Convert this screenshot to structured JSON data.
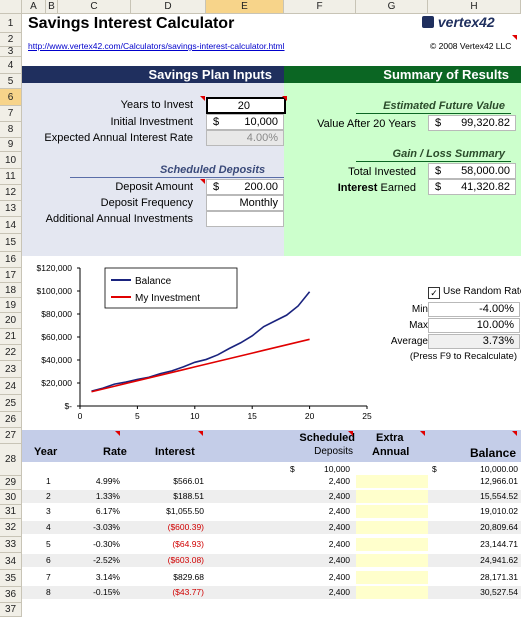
{
  "columns": [
    "A",
    "B",
    "C",
    "D",
    "E",
    "F",
    "G",
    "H"
  ],
  "rows": [
    "1",
    "2",
    "3",
    "4",
    "5",
    "6",
    "7",
    "8",
    "9",
    "10",
    "11",
    "12",
    "13",
    "14",
    "15",
    "16",
    "17",
    "18",
    "19",
    "20",
    "21",
    "22",
    "23",
    "24",
    "25",
    "26",
    "27",
    "28",
    "29",
    "30",
    "31",
    "32",
    "33",
    "34",
    "35",
    "36",
    "37"
  ],
  "title": "Savings Interest Calculator",
  "logo": "vertex42",
  "url": "http://www.vertex42.com/Calculators/savings-interest-calculator.html",
  "copyright": "© 2008 Vertex42 LLC",
  "inputs_header": "Savings Plan Inputs",
  "summary_header": "Summary of Results",
  "inputs": {
    "years_label": "Years to Invest",
    "years_value": "20",
    "initial_label": "Initial Investment",
    "initial_currency": "$",
    "initial_value": "10,000",
    "rate_label": "Expected Annual Interest Rate",
    "rate_value": "4.00%",
    "scheduled_title": "Scheduled Deposits",
    "deposit_label": "Deposit Amount",
    "deposit_currency": "$",
    "deposit_value": "200.00",
    "frequency_label": "Deposit Frequency",
    "frequency_value": "Monthly",
    "additional_label": "Additional Annual Investments",
    "additional_value": ""
  },
  "summary": {
    "efv_title": "Estimated Future Value",
    "after_label": "Value After 20 Years",
    "after_currency": "$",
    "after_value": "99,320.82",
    "gain_title": "Gain / Loss Summary",
    "invested_label": "Total Invested",
    "invested_currency": "$",
    "invested_value": "58,000.00",
    "interest_label_bold": "Interest",
    "interest_label_rest": "Earned",
    "interest_currency": "$",
    "interest_value": "41,320.82"
  },
  "random": {
    "checkbox_label": "Use Random Rate",
    "checked": true,
    "min_label": "Min",
    "min_value": "-4.00%",
    "max_label": "Max",
    "max_value": "10.00%",
    "avg_label": "Average",
    "avg_value": "3.73%",
    "note": "(Press F9 to Recalculate)"
  },
  "chart_data": {
    "type": "line",
    "title": "",
    "xlabel": "",
    "ylabel": "",
    "xlim": [
      0,
      25
    ],
    "ylim": [
      0,
      120000
    ],
    "x_ticks": [
      "0",
      "5",
      "10",
      "15",
      "20",
      "25"
    ],
    "y_ticks": [
      "$-",
      "$20,000",
      "$40,000",
      "$60,000",
      "$80,000",
      "$100,000",
      "$120,000"
    ],
    "legend_placement": "top-left",
    "series": [
      {
        "name": "Balance",
        "color": "#1a237e",
        "x": [
          1,
          2,
          3,
          4,
          5,
          6,
          7,
          8,
          9,
          10,
          11,
          12,
          13,
          14,
          15,
          16,
          17,
          18,
          19,
          20
        ],
        "values": [
          12966,
          15555,
          19010,
          20810,
          23145,
          24942,
          28171,
          30528,
          34000,
          38000,
          40500,
          44500,
          50000,
          55000,
          61000,
          69000,
          74000,
          79000,
          87000,
          99321
        ]
      },
      {
        "name": "My Investment",
        "color": "#e00000",
        "x": [
          1,
          2,
          3,
          4,
          5,
          6,
          7,
          8,
          9,
          10,
          11,
          12,
          13,
          14,
          15,
          16,
          17,
          18,
          19,
          20
        ],
        "values": [
          12400,
          14800,
          17200,
          19600,
          22000,
          24400,
          26800,
          29200,
          31600,
          34000,
          36400,
          38800,
          41200,
          43600,
          46000,
          48400,
          50800,
          53200,
          55600,
          58000
        ]
      }
    ]
  },
  "table": {
    "headers": {
      "year": "Year",
      "rate": "Rate",
      "interest": "Interest",
      "sched1": "Scheduled",
      "sched2": "Deposits",
      "extra1": "Extra",
      "extra2": "Annual",
      "balance": "Balance"
    },
    "row0": {
      "dep_cur": "$",
      "deposits": "10,000",
      "bal_cur": "$",
      "balance": "10,000.00"
    },
    "rows": [
      {
        "year": "1",
        "rate": "4.99%",
        "interest": "$566.01",
        "deposits": "2,400",
        "balance": "12,966.01",
        "neg": false
      },
      {
        "year": "2",
        "rate": "1.33%",
        "interest": "$188.51",
        "deposits": "2,400",
        "balance": "15,554.52",
        "neg": false
      },
      {
        "year": "3",
        "rate": "6.17%",
        "interest": "$1,055.50",
        "deposits": "2,400",
        "balance": "19,010.02",
        "neg": false
      },
      {
        "year": "4",
        "rate": "-3.03%",
        "interest": "($600.39)",
        "deposits": "2,400",
        "balance": "20,809.64",
        "neg": true
      },
      {
        "year": "5",
        "rate": "-0.30%",
        "interest": "($64.93)",
        "deposits": "2,400",
        "balance": "23,144.71",
        "neg": true
      },
      {
        "year": "6",
        "rate": "-2.52%",
        "interest": "($603.08)",
        "deposits": "2,400",
        "balance": "24,941.62",
        "neg": true
      },
      {
        "year": "7",
        "rate": "3.14%",
        "interest": "$829.68",
        "deposits": "2,400",
        "balance": "28,171.31",
        "neg": false
      },
      {
        "year": "8",
        "rate": "-0.15%",
        "interest": "($43.77)",
        "deposits": "2,400",
        "balance": "30,527.54",
        "neg": true
      }
    ]
  },
  "colors": {
    "navy": "#1f2f5e",
    "green": "#0b6623",
    "input_bg": "#e4e7f1",
    "summary_bg": "#ccffcc",
    "table_header": "#c4cde8",
    "extra_col": "#ffffcc"
  }
}
